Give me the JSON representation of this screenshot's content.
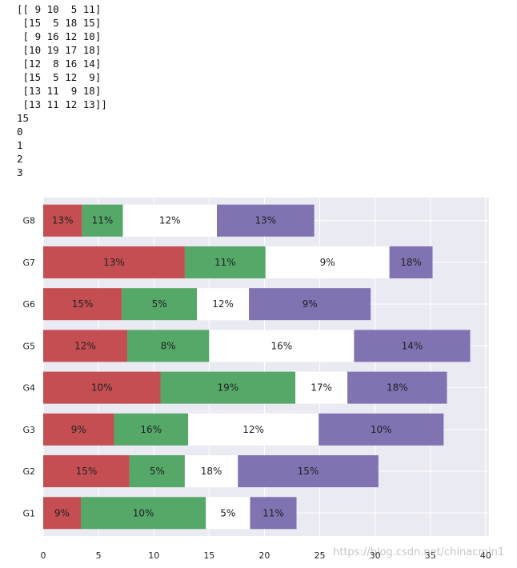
{
  "console": {
    "lines": [
      "[[ 9 10  5 11]",
      " [15  5 18 15]",
      " [ 9 16 12 10]",
      " [10 19 17 18]",
      " [12  8 16 14]",
      " [15  5 12  9]",
      " [13 11  9 18]",
      " [13 11 12 13]]",
      "15",
      "0",
      "1",
      "2",
      "3"
    ]
  },
  "watermark": "https://blog.csdn.net/chinacmin1",
  "chart_data": {
    "type": "bar",
    "orientation": "horizontal",
    "stacked": true,
    "categories": [
      "G1",
      "G2",
      "G3",
      "G4",
      "G5",
      "G6",
      "G7",
      "G8"
    ],
    "series": [
      {
        "color": "#c44e52",
        "values": [
          3.4,
          7.8,
          6.4,
          10.6,
          7.6,
          7.1,
          12.8,
          3.5
        ],
        "labels": [
          "9%",
          "15%",
          "9%",
          "10%",
          "12%",
          "15%",
          "13%",
          "13%"
        ]
      },
      {
        "color": "#55a868",
        "values": [
          11.3,
          5.0,
          6.7,
          12.2,
          7.4,
          6.8,
          7.3,
          3.7
        ],
        "labels": [
          "10%",
          "5%",
          "16%",
          "19%",
          "8%",
          "5%",
          "11%",
          "11%"
        ]
      },
      {
        "color": "#ffffff",
        "values": [
          4.0,
          4.8,
          11.8,
          4.7,
          13.1,
          4.7,
          11.2,
          8.5
        ],
        "labels": [
          "5%",
          "18%",
          "12%",
          "17%",
          "16%",
          "12%",
          "9%",
          "12%"
        ]
      },
      {
        "color": "#8172b2",
        "values": [
          4.2,
          12.7,
          11.3,
          9.0,
          10.5,
          11.0,
          3.9,
          8.8
        ],
        "labels": [
          "11%",
          "15%",
          "10%",
          "18%",
          "14%",
          "9%",
          "18%",
          "13%"
        ]
      }
    ],
    "xticks": [
      "0",
      "5",
      "10",
      "15",
      "20",
      "25",
      "30",
      "35",
      "40"
    ],
    "xlim": [
      0,
      40.3
    ],
    "grid": true,
    "background": "#eaeaf2"
  }
}
